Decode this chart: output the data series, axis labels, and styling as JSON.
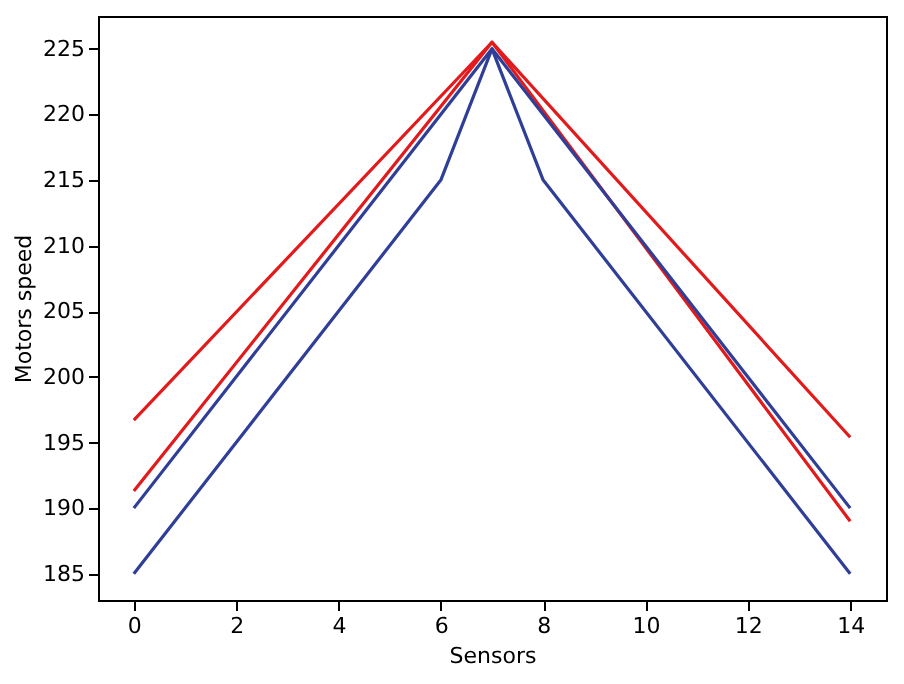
{
  "chart_data": {
    "type": "line",
    "xlabel": "Sensors",
    "ylabel": "Motors speed",
    "xlim": [
      -0.7,
      14.7
    ],
    "xticks": [
      0,
      2,
      4,
      6,
      8,
      10,
      12,
      14
    ],
    "ylim": [
      183,
      227.5
    ],
    "yticks": [
      185,
      190,
      195,
      200,
      205,
      210,
      215,
      220,
      225
    ],
    "grid": false,
    "legend": false,
    "series": [
      {
        "color": "#e31a1c",
        "x": [
          0,
          7,
          14
        ],
        "values": [
          196.7,
          225.5,
          195.4
        ]
      },
      {
        "color": "#e31a1c",
        "x": [
          0,
          7,
          14
        ],
        "values": [
          191.3,
          225.5,
          189
        ]
      },
      {
        "color": "#2f3f98",
        "x": [
          0,
          7,
          14
        ],
        "values": [
          190,
          225,
          190
        ]
      },
      {
        "color": "#2f3f98",
        "x": [
          0,
          6,
          7,
          8,
          14
        ],
        "values": [
          185,
          215,
          225,
          215,
          185
        ]
      }
    ]
  }
}
